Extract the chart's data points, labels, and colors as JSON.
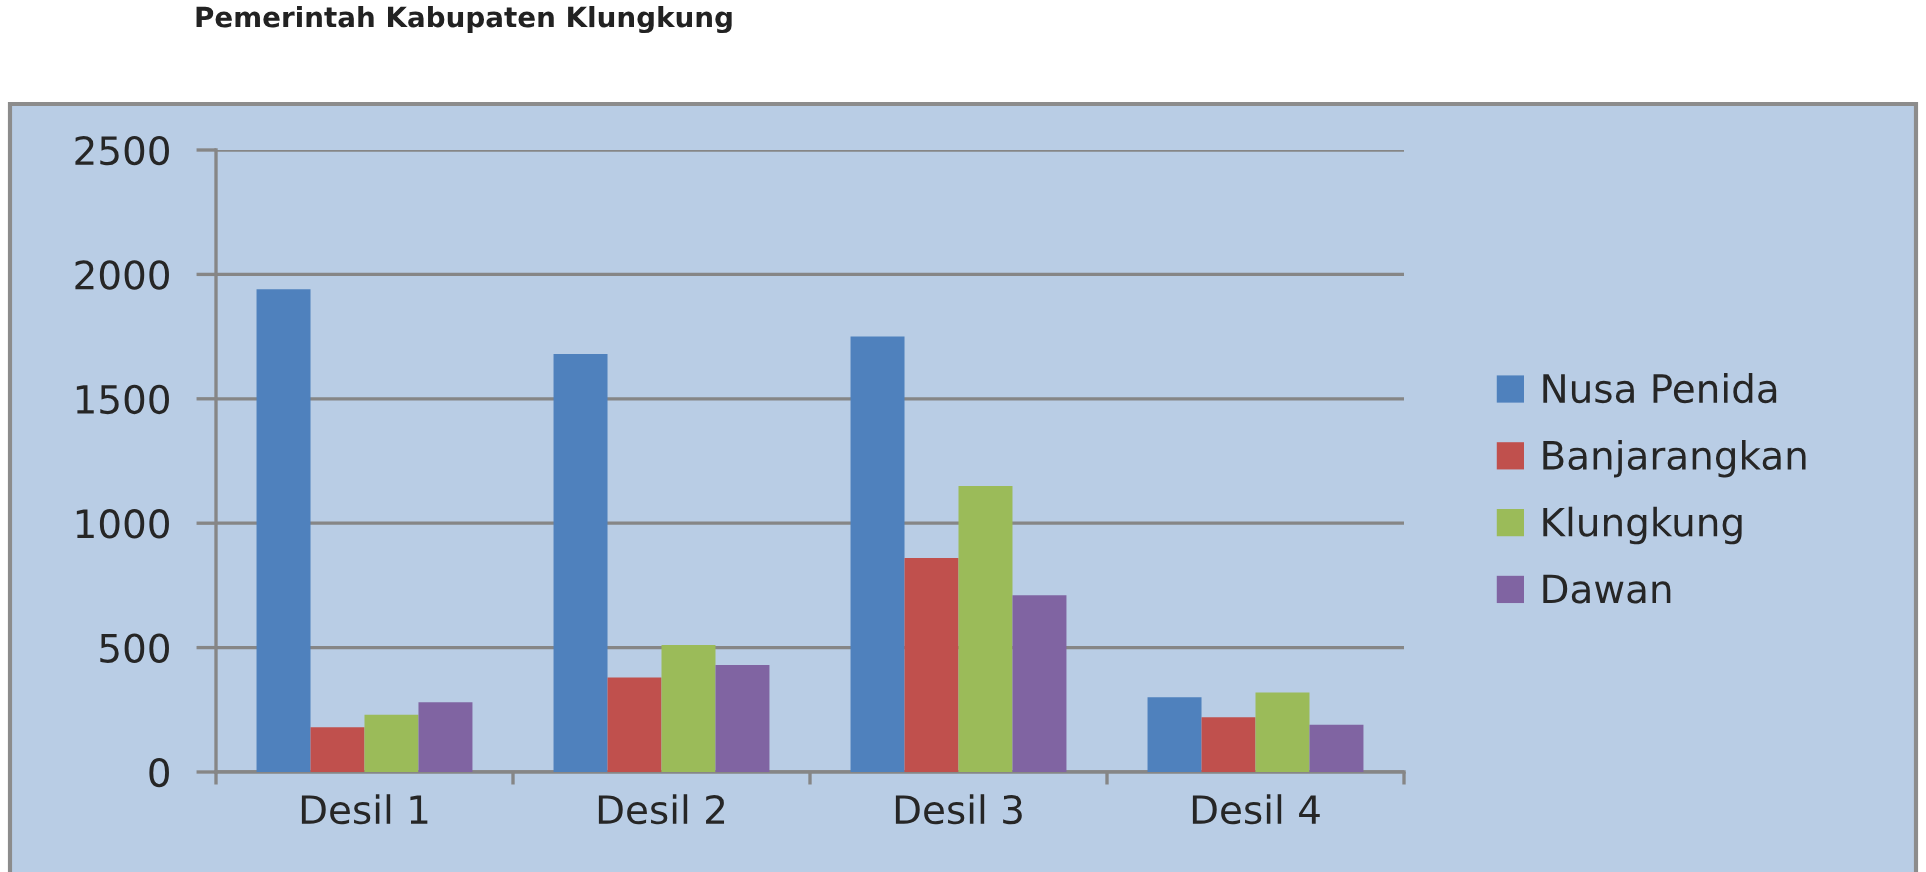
{
  "chart_data": {
    "type": "bar",
    "title": "Pemerintah Kabupaten Klungkung",
    "categories": [
      "Desil 1",
      "Desil 2",
      "Desil 3",
      "Desil 4"
    ],
    "series": [
      {
        "name": "Nusa Penida",
        "color": "#4f81bd",
        "values": [
          1940,
          1680,
          1750,
          300
        ]
      },
      {
        "name": "Banjarangkan",
        "color": "#c0504d",
        "values": [
          180,
          380,
          860,
          220
        ]
      },
      {
        "name": "Klungkung",
        "color": "#9bbb59",
        "values": [
          230,
          510,
          1150,
          320
        ]
      },
      {
        "name": "Dawan",
        "color": "#8064a2",
        "values": [
          280,
          430,
          710,
          190
        ]
      }
    ],
    "ylim": [
      0,
      2500
    ],
    "yticks": [
      0,
      500,
      1000,
      1500,
      2000,
      2500
    ],
    "grid": "y",
    "legend": "right"
  }
}
